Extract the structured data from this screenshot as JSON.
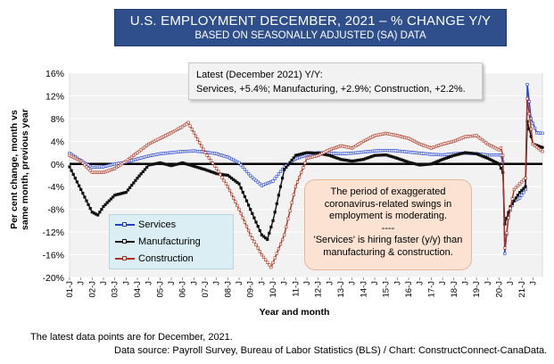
{
  "title": {
    "line1": "U.S. EMPLOYMENT DECEMBER, 2021 – % CHANGE Y/Y",
    "line2": "BASED ON SEASONALLY ADJUSTED (SA) DATA"
  },
  "latest_box": {
    "line1": "Latest (December 2021) Y/Y:",
    "line2": "Services, +5.4%; Manufacturing, +2.9%; Construction, +2.2%."
  },
  "note": {
    "line1": "The period of exaggerated",
    "line2": "coronavirus-related swings in",
    "line3": "employment is moderating.",
    "line4": "----",
    "line5": "'Services' is hiring faster (y/y) than",
    "line6": "manufacturing & construction."
  },
  "footer": {
    "line1": "The latest data points are for December, 2021.",
    "line2": "Data source: Payroll Survey, Bureau of Labor Statistics (BLS) / Chart: ConstructConnect-CanaData."
  },
  "colors": {
    "services": "#1f3fd6",
    "manufacturing": "#111111",
    "construction": "#b0301c",
    "plot_bg": "#f2f2f2",
    "title_bg": "#2e4f8c"
  },
  "chart_data": {
    "type": "line",
    "title": "U.S. EMPLOYMENT DECEMBER, 2021 – % CHANGE Y/Y",
    "subtitle": "BASED ON SEASONALLY ADJUSTED (SA) DATA",
    "xlabel": "Year and month",
    "ylabel": "Per cent change, month vs same month, previous year",
    "ylim": [
      -20,
      16
    ],
    "yticks": [
      "16%",
      "12%",
      "8%",
      "4%",
      "0%",
      "-4%",
      "-8%",
      "-12%",
      "-16%",
      "-20%"
    ],
    "xticks": [
      "01-J",
      "J",
      "02-J",
      "J",
      "03-J",
      "J",
      "04-J",
      "J",
      "05-J",
      "J",
      "06-J",
      "J",
      "07-J",
      "J",
      "08-J",
      "J",
      "09-J",
      "J",
      "10-J",
      "J",
      "11-J",
      "J",
      "12-J",
      "J",
      "13-J",
      "J",
      "14-J",
      "J",
      "15-J",
      "J",
      "16-J",
      "J",
      "17-J",
      "J",
      "18-J",
      "J",
      "19-J",
      "J",
      "20-J",
      "J",
      "21-J",
      "J"
    ],
    "x_start": "2001-01",
    "x_end": "2021-12",
    "legend": "bottom-left",
    "grid": "horizontal",
    "series": [
      {
        "name": "Services",
        "points": [
          [
            "2001-01",
            1.9
          ],
          [
            "2001-07",
            0.6
          ],
          [
            "2002-01",
            -0.6
          ],
          [
            "2002-07",
            -0.5
          ],
          [
            "2003-01",
            0.0
          ],
          [
            "2003-07",
            0.3
          ],
          [
            "2004-01",
            0.9
          ],
          [
            "2004-07",
            1.4
          ],
          [
            "2005-01",
            1.8
          ],
          [
            "2005-07",
            2.0
          ],
          [
            "2006-01",
            2.2
          ],
          [
            "2006-07",
            2.3
          ],
          [
            "2007-01",
            2.1
          ],
          [
            "2007-07",
            1.8
          ],
          [
            "2008-01",
            1.2
          ],
          [
            "2008-07",
            0.2
          ],
          [
            "2009-01",
            -2.1
          ],
          [
            "2009-07",
            -3.8
          ],
          [
            "2010-01",
            -3.0
          ],
          [
            "2010-07",
            -0.5
          ],
          [
            "2011-01",
            0.9
          ],
          [
            "2011-07",
            1.6
          ],
          [
            "2012-01",
            2.0
          ],
          [
            "2012-07",
            1.9
          ],
          [
            "2013-01",
            1.8
          ],
          [
            "2013-07",
            1.9
          ],
          [
            "2014-01",
            2.1
          ],
          [
            "2014-07",
            2.3
          ],
          [
            "2015-01",
            2.4
          ],
          [
            "2015-07",
            2.3
          ],
          [
            "2016-01",
            2.1
          ],
          [
            "2016-07",
            1.9
          ],
          [
            "2017-01",
            1.7
          ],
          [
            "2017-07",
            1.6
          ],
          [
            "2018-01",
            1.8
          ],
          [
            "2018-07",
            1.9
          ],
          [
            "2019-01",
            1.8
          ],
          [
            "2019-07",
            1.6
          ],
          [
            "2020-01",
            1.6
          ],
          [
            "2020-02",
            1.5
          ],
          [
            "2020-03",
            0.3
          ],
          [
            "2020-04",
            -15.8
          ],
          [
            "2020-06",
            -9.0
          ],
          [
            "2020-09",
            -6.5
          ],
          [
            "2020-12",
            -6.0
          ],
          [
            "2021-03",
            -4.5
          ],
          [
            "2021-04",
            14.0
          ],
          [
            "2021-06",
            8.0
          ],
          [
            "2021-09",
            5.5
          ],
          [
            "2021-12",
            5.4
          ]
        ]
      },
      {
        "name": "Manufacturing",
        "points": [
          [
            "2001-01",
            -0.5
          ],
          [
            "2001-07",
            -4.5
          ],
          [
            "2002-01",
            -8.5
          ],
          [
            "2002-04",
            -9.0
          ],
          [
            "2002-07",
            -7.5
          ],
          [
            "2003-01",
            -5.5
          ],
          [
            "2003-07",
            -5.0
          ],
          [
            "2004-01",
            -2.5
          ],
          [
            "2004-07",
            -0.2
          ],
          [
            "2005-01",
            0.2
          ],
          [
            "2005-07",
            -0.3
          ],
          [
            "2006-01",
            0.2
          ],
          [
            "2006-07",
            -0.4
          ],
          [
            "2007-01",
            -1.0
          ],
          [
            "2007-07",
            -1.7
          ],
          [
            "2008-01",
            -2.0
          ],
          [
            "2008-07",
            -3.5
          ],
          [
            "2009-01",
            -8.0
          ],
          [
            "2009-07",
            -12.5
          ],
          [
            "2009-10",
            -13.3
          ],
          [
            "2010-01",
            -10.0
          ],
          [
            "2010-07",
            -1.0
          ],
          [
            "2011-01",
            1.5
          ],
          [
            "2011-07",
            2.0
          ],
          [
            "2012-01",
            1.9
          ],
          [
            "2012-07",
            1.5
          ],
          [
            "2013-01",
            0.8
          ],
          [
            "2013-07",
            0.5
          ],
          [
            "2014-01",
            0.8
          ],
          [
            "2014-07",
            1.5
          ],
          [
            "2015-01",
            1.6
          ],
          [
            "2015-07",
            1.0
          ],
          [
            "2016-01",
            0.3
          ],
          [
            "2016-07",
            -0.2
          ],
          [
            "2017-01",
            0.0
          ],
          [
            "2017-07",
            0.8
          ],
          [
            "2018-01",
            1.5
          ],
          [
            "2018-07",
            2.0
          ],
          [
            "2019-01",
            1.8
          ],
          [
            "2019-07",
            1.0
          ],
          [
            "2020-01",
            0.0
          ],
          [
            "2020-03",
            -1.5
          ],
          [
            "2020-04",
            -10.6
          ],
          [
            "2020-07",
            -7.5
          ],
          [
            "2020-12",
            -5.0
          ],
          [
            "2021-03",
            -4.0
          ],
          [
            "2021-04",
            7.5
          ],
          [
            "2021-07",
            3.5
          ],
          [
            "2021-12",
            2.9
          ]
        ]
      },
      {
        "name": "Construction",
        "points": [
          [
            "2001-01",
            1.5
          ],
          [
            "2001-07",
            0.5
          ],
          [
            "2002-01",
            -1.5
          ],
          [
            "2002-07",
            -1.5
          ],
          [
            "2003-01",
            -0.8
          ],
          [
            "2003-07",
            0.5
          ],
          [
            "2004-01",
            2.0
          ],
          [
            "2004-07",
            3.5
          ],
          [
            "2005-01",
            4.5
          ],
          [
            "2005-07",
            5.5
          ],
          [
            "2006-01",
            6.6
          ],
          [
            "2006-04",
            7.3
          ],
          [
            "2006-07",
            5.5
          ],
          [
            "2007-01",
            2.0
          ],
          [
            "2007-07",
            -0.8
          ],
          [
            "2008-01",
            -4.0
          ],
          [
            "2008-07",
            -8.0
          ],
          [
            "2009-01",
            -12.5
          ],
          [
            "2009-07",
            -16.0
          ],
          [
            "2009-12",
            -18.2
          ],
          [
            "2010-07",
            -12.5
          ],
          [
            "2011-01",
            -4.0
          ],
          [
            "2011-07",
            1.0
          ],
          [
            "2012-01",
            1.5
          ],
          [
            "2012-07",
            2.5
          ],
          [
            "2013-01",
            3.2
          ],
          [
            "2013-07",
            2.8
          ],
          [
            "2014-01",
            4.0
          ],
          [
            "2014-07",
            5.0
          ],
          [
            "2015-01",
            5.4
          ],
          [
            "2015-07",
            5.0
          ],
          [
            "2016-01",
            4.5
          ],
          [
            "2016-07",
            3.5
          ],
          [
            "2017-01",
            2.8
          ],
          [
            "2017-07",
            3.5
          ],
          [
            "2018-01",
            4.0
          ],
          [
            "2018-07",
            4.8
          ],
          [
            "2019-01",
            5.0
          ],
          [
            "2019-07",
            3.5
          ],
          [
            "2020-01",
            2.5
          ],
          [
            "2020-02",
            2.8
          ],
          [
            "2020-03",
            1.5
          ],
          [
            "2020-04",
            -14.8
          ],
          [
            "2020-06",
            -9.5
          ],
          [
            "2020-09",
            -4.5
          ],
          [
            "2020-12",
            -3.5
          ],
          [
            "2021-03",
            -2.5
          ],
          [
            "2021-04",
            11.5
          ],
          [
            "2021-07",
            3.5
          ],
          [
            "2021-12",
            2.2
          ]
        ]
      }
    ]
  }
}
